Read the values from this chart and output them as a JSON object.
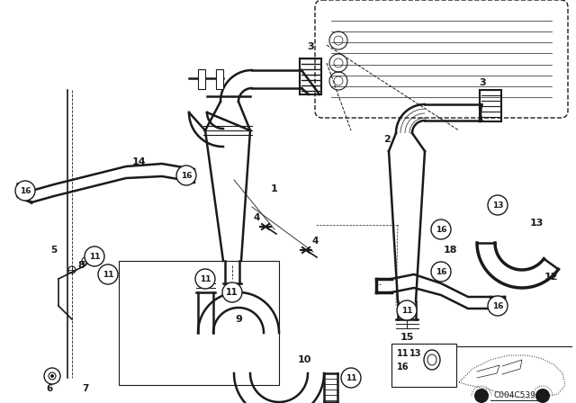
{
  "bg_color": "#ffffff",
  "line_color": "#1a1a1a",
  "fig_width": 6.4,
  "fig_height": 4.48,
  "dpi": 100,
  "watermark": "C004C539"
}
